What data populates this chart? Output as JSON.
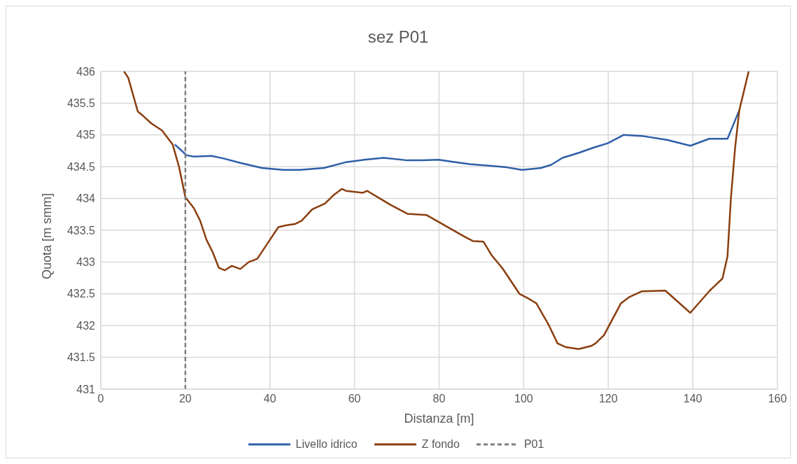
{
  "chart_data": {
    "type": "line",
    "title": "sez P01",
    "xlabel": "Distanza [m]",
    "ylabel": "Quota [m smm]",
    "xlim": [
      0,
      160
    ],
    "xticks": [
      0,
      20,
      40,
      60,
      80,
      100,
      120,
      140,
      160
    ],
    "ylim": [
      431,
      436
    ],
    "yticks": [
      431,
      {
        "value": 431.5,
        "label": "431.5"
      },
      432,
      {
        "value": 432.5,
        "label": "432.5"
      },
      433,
      {
        "value": 433.5,
        "label": "433.5"
      },
      434,
      {
        "value": 434.5,
        "label": "434.5"
      },
      435,
      {
        "value": 435.5,
        "label": "435.5"
      },
      436
    ],
    "grid": true,
    "legend": "bottom",
    "marker": "none",
    "line_style": "solid",
    "series": [
      {
        "name": "Livello idrico",
        "color": "#2e5fa8",
        "x": [
          17.5,
          20.3,
          22,
          26.2,
          29,
          33,
          38.1,
          43.2,
          47,
          52.8,
          57.9,
          62.3,
          66.9,
          72.5,
          76,
          79.9,
          83,
          87.2,
          92.8,
          96,
          99.6,
          104.1,
          106.5,
          109.2,
          113.1,
          116.5,
          119.9,
          123.6,
          128.4,
          134,
          139.4,
          143.9,
          148.2,
          151
        ],
        "values": [
          434.85,
          434.68,
          434.66,
          434.67,
          434.63,
          434.56,
          434.48,
          434.45,
          434.45,
          434.48,
          434.57,
          434.61,
          434.64,
          434.6,
          434.6,
          434.61,
          434.58,
          434.54,
          434.51,
          434.49,
          434.45,
          434.48,
          434.53,
          434.64,
          434.72,
          434.8,
          434.87,
          435.0,
          434.98,
          434.92,
          434.83,
          434.94,
          434.94,
          435.39
        ]
      },
      {
        "name": "Z fondo",
        "color": "#8b3e0f",
        "x": [
          5.5,
          6.5,
          8.75,
          10,
          12,
          14.5,
          17,
          18.5,
          20,
          22,
          23.5,
          25,
          26.5,
          27.9,
          29.3,
          31,
          33,
          35,
          37,
          39.5,
          42,
          44,
          46,
          47.5,
          50,
          53,
          55,
          57,
          58,
          62,
          63,
          66,
          68.5,
          72.5,
          77,
          82,
          86,
          88,
          90.5,
          92.5,
          95,
          99,
          101,
          103,
          106,
          108,
          110,
          113,
          116,
          117,
          119,
          123,
          125,
          128,
          133.5,
          139.4,
          144,
          147,
          148.2,
          149,
          150,
          151,
          153.2
        ],
        "values": [
          436,
          435.9,
          435.37,
          435.3,
          435.18,
          435.07,
          434.85,
          434.5,
          434.02,
          433.85,
          433.65,
          433.35,
          433.15,
          432.91,
          432.87,
          432.94,
          432.89,
          433,
          433.05,
          433.3,
          433.55,
          433.58,
          433.6,
          433.65,
          433.83,
          433.92,
          434.05,
          434.15,
          434.12,
          434.09,
          434.12,
          434,
          433.9,
          433.76,
          433.74,
          433.55,
          433.4,
          433.33,
          433.32,
          433.1,
          432.9,
          432.5,
          432.43,
          432.35,
          432,
          431.72,
          431.66,
          431.63,
          431.68,
          431.72,
          431.85,
          432.35,
          432.45,
          432.54,
          432.55,
          432.2,
          432.55,
          432.74,
          433.09,
          434,
          434.8,
          435.39,
          436
        ]
      }
    ],
    "ref_lines": [
      {
        "axis": "x",
        "value": 20,
        "label": "P01",
        "color": "#7f7f7f",
        "line_style": "dashed"
      }
    ]
  }
}
